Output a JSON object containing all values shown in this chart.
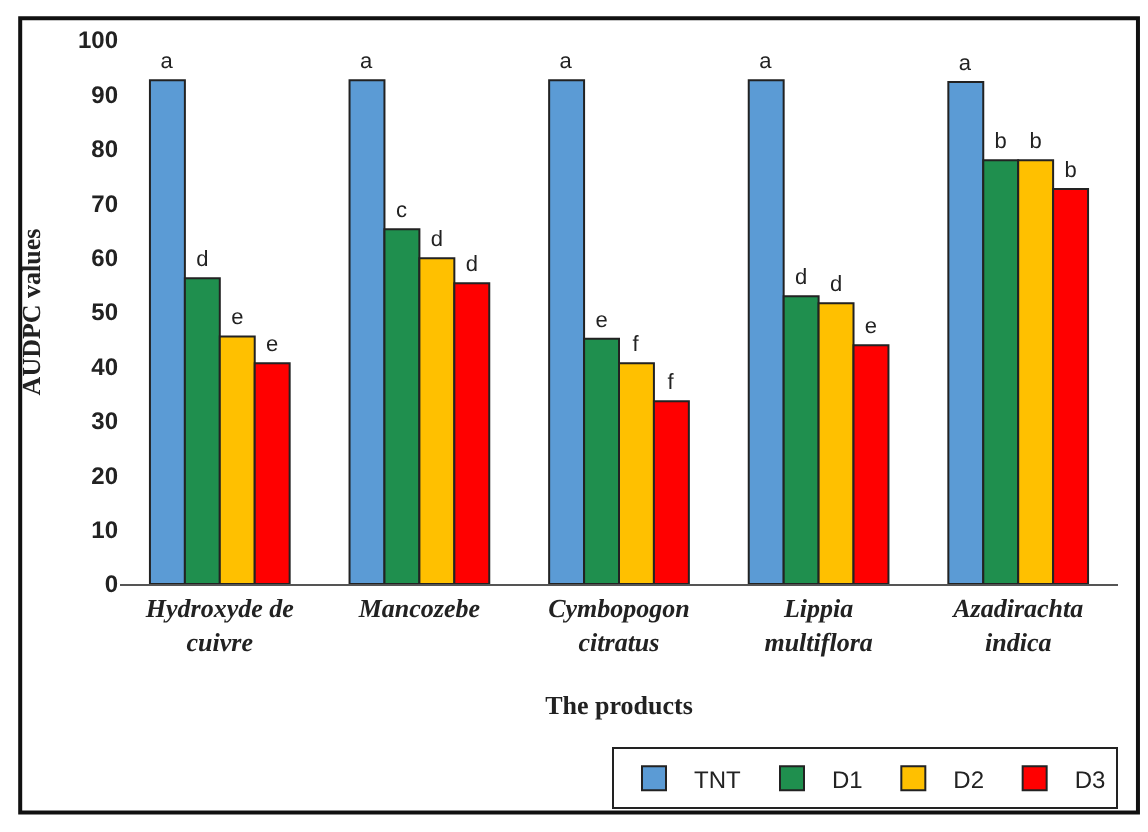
{
  "chart_data": {
    "type": "bar",
    "xlabel": "The products",
    "ylabel": "AUDPC values",
    "categories": [
      "Hydroxyde de cuivre",
      "Mancozebe",
      "Cymbopogon citratus",
      "Lippia multiflora",
      "Azadirachta indica"
    ],
    "series": [
      {
        "name": "TNT",
        "color": "#5b9bd5",
        "values": [
          92.6,
          92.6,
          92.6,
          92.6,
          92.3
        ],
        "value_labels": [
          "a",
          "a",
          "a",
          "a",
          "a"
        ]
      },
      {
        "name": "D1",
        "color": "#1f8f4e",
        "values": [
          56.2,
          65.2,
          45.1,
          52.9,
          77.9
        ],
        "value_labels": [
          "d",
          "c",
          "e",
          "d",
          "b"
        ]
      },
      {
        "name": "D2",
        "color": "#ffc000",
        "values": [
          45.5,
          59.9,
          40.6,
          51.6,
          77.9
        ],
        "value_labels": [
          "e",
          "d",
          "f",
          "d",
          "b"
        ]
      },
      {
        "name": "D3",
        "color": "#ff0000",
        "values": [
          40.6,
          55.3,
          33.6,
          43.9,
          72.6
        ],
        "value_labels": [
          "e",
          "d",
          "f",
          "e",
          "b"
        ]
      }
    ],
    "ylim": [
      0,
      100
    ],
    "yticks": [
      0,
      10,
      20,
      30,
      40,
      50,
      60,
      70,
      80,
      90,
      100
    ],
    "legend": "bottom right"
  }
}
